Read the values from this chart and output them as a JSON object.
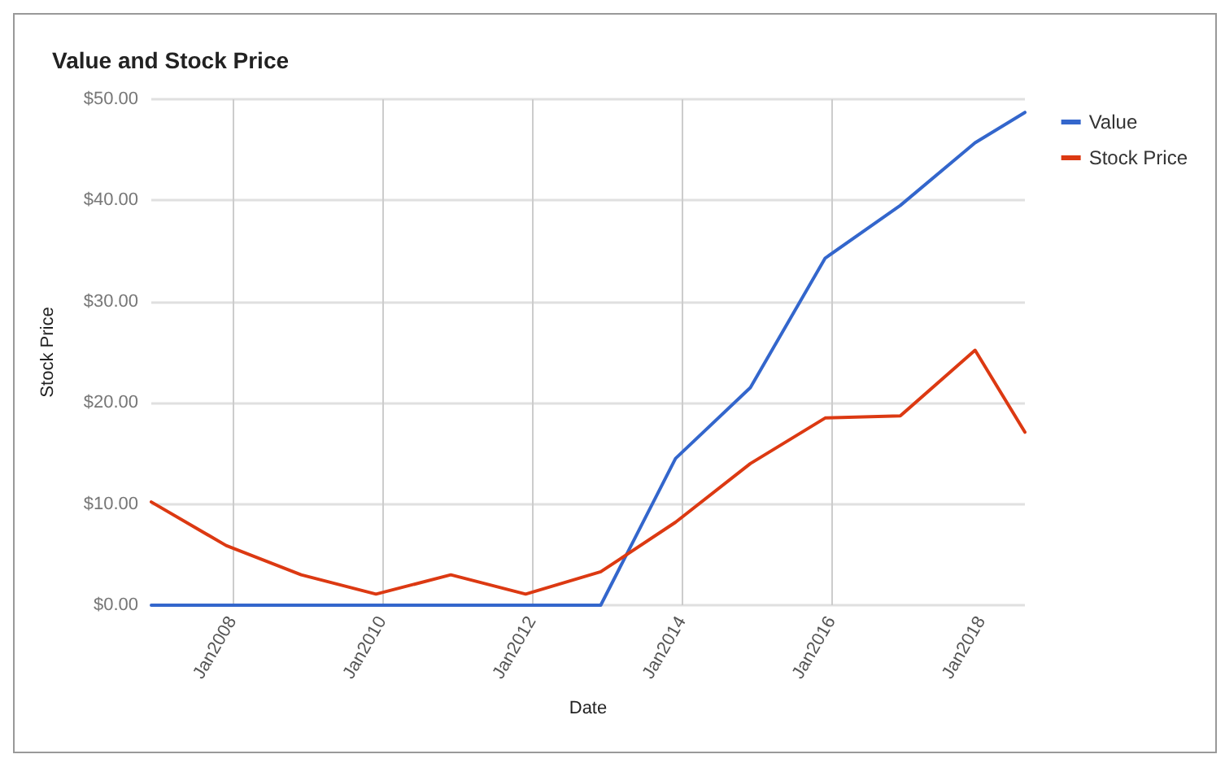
{
  "chart_data": {
    "type": "line",
    "title": "Value and Stock Price",
    "xlabel": "Date",
    "ylabel": "Stock Price",
    "x": [
      "2006-12",
      "2007-12",
      "2008-12",
      "2009-12",
      "2010-12",
      "2011-12",
      "2012-12",
      "2013-12",
      "2014-12",
      "2015-12",
      "2016-12",
      "2017-12",
      "2018-08"
    ],
    "series": [
      {
        "name": "Value",
        "color": "#3366cc",
        "values": [
          0,
          0,
          0,
          0,
          0,
          0,
          0,
          14.5,
          21.5,
          34.3,
          39.5,
          45.7,
          48.7
        ]
      },
      {
        "name": "Stock Price",
        "color": "#dc3912",
        "values": [
          10.2,
          5.9,
          3.0,
          1.1,
          3.0,
          1.1,
          3.3,
          8.2,
          14.0,
          18.5,
          18.7,
          25.2,
          17.1
        ]
      }
    ],
    "xlim": [
      "2006-12",
      "2018-08"
    ],
    "xticks": [
      {
        "value": "2008-01",
        "label": "Jan2008"
      },
      {
        "value": "2010-01",
        "label": "Jan2010"
      },
      {
        "value": "2012-01",
        "label": "Jan2012"
      },
      {
        "value": "2014-01",
        "label": "Jan2014"
      },
      {
        "value": "2016-01",
        "label": "Jan2016"
      },
      {
        "value": "2018-01",
        "label": "Jan2018"
      }
    ],
    "ylim": [
      0,
      50
    ],
    "yticks": [
      {
        "value": 0,
        "label": "$0.00"
      },
      {
        "value": 10,
        "label": "$10.00"
      },
      {
        "value": 20,
        "label": "$20.00"
      },
      {
        "value": 30,
        "label": "$30.00"
      },
      {
        "value": 40,
        "label": "$40.00"
      },
      {
        "value": 50,
        "label": "$50.00"
      }
    ],
    "grid": true,
    "legend": "top right",
    "marker": "none",
    "line_style": "solid"
  }
}
